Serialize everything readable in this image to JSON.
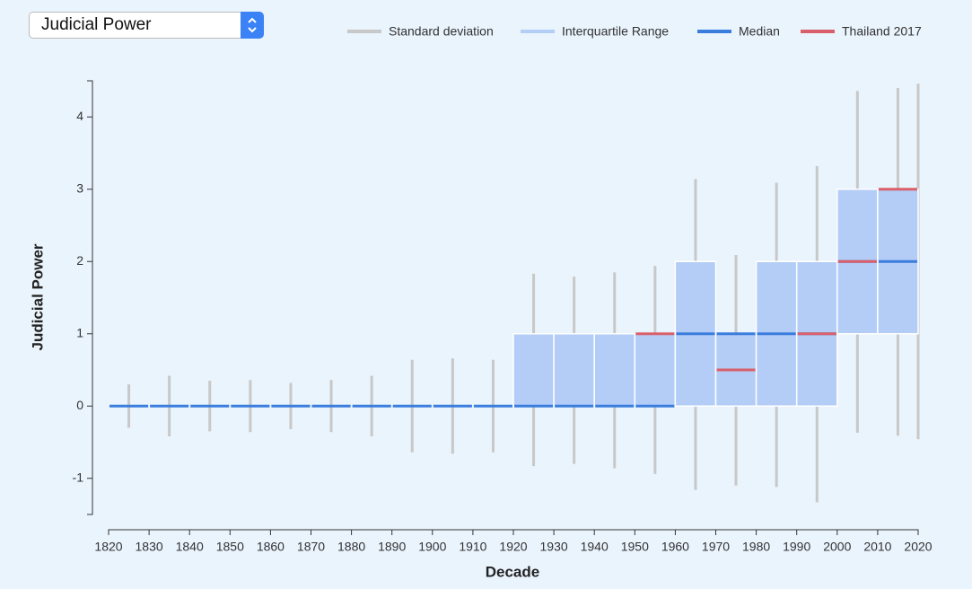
{
  "dropdown": {
    "selected": "Judicial Power"
  },
  "chart_data": {
    "type": "range",
    "xlabel": "Decade",
    "ylabel": "Judicial Power",
    "x": [
      1820,
      1830,
      1840,
      1850,
      1860,
      1870,
      1880,
      1890,
      1900,
      1910,
      1920,
      1930,
      1940,
      1950,
      1960,
      1970,
      1980,
      1990,
      2000,
      2010,
      2020
    ],
    "series": [
      {
        "name": "Standard deviation",
        "color": "#c8c8c8",
        "low": [
          -0.3,
          -0.42,
          -0.35,
          -0.36,
          -0.32,
          -0.36,
          -0.42,
          -0.64,
          -0.66,
          -0.64,
          -0.83,
          -0.8,
          -0.86,
          -0.94,
          -1.16,
          -1.1,
          -1.12,
          -1.33,
          -0.37,
          -0.41,
          -0.46
        ],
        "high": [
          0.3,
          0.42,
          0.35,
          0.36,
          0.32,
          0.36,
          0.42,
          0.64,
          0.66,
          0.64,
          1.83,
          1.79,
          1.85,
          1.94,
          3.14,
          2.09,
          3.09,
          3.32,
          4.36,
          4.4,
          4.46
        ]
      },
      {
        "name": "Interquartile Range",
        "color": "#b3cdf7",
        "low": [
          0,
          0,
          0,
          0,
          0,
          0,
          0,
          0,
          0,
          0,
          0,
          0,
          0,
          0,
          0,
          0,
          0,
          0,
          1,
          1,
          null
        ],
        "high": [
          0,
          0,
          0,
          0,
          0,
          0,
          0,
          0,
          0,
          0,
          1,
          1,
          1,
          1,
          2,
          1,
          2,
          2,
          3,
          3,
          null
        ]
      },
      {
        "name": "Median",
        "color": "#3b7ddd",
        "values": [
          0,
          0,
          0,
          0,
          0,
          0,
          0,
          0,
          0,
          0,
          0,
          0,
          0,
          0,
          1,
          1,
          1,
          1,
          2,
          2,
          null
        ]
      },
      {
        "name": "Thailand 2017",
        "color": "#d9606b",
        "values": [
          null,
          null,
          null,
          null,
          null,
          null,
          null,
          null,
          null,
          null,
          null,
          null,
          null,
          1,
          null,
          0.5,
          null,
          1,
          2,
          3,
          null
        ]
      }
    ],
    "xlim": [
      1820,
      2020
    ],
    "xticks": [
      1820,
      1830,
      1840,
      1850,
      1860,
      1870,
      1880,
      1890,
      1900,
      1910,
      1920,
      1930,
      1940,
      1950,
      1960,
      1970,
      1980,
      1990,
      2000,
      2010,
      2020
    ],
    "ylim": [
      -1.5,
      4.5
    ],
    "yticks": [
      -1,
      0,
      1,
      2,
      3,
      4
    ],
    "legend": "top-right"
  }
}
